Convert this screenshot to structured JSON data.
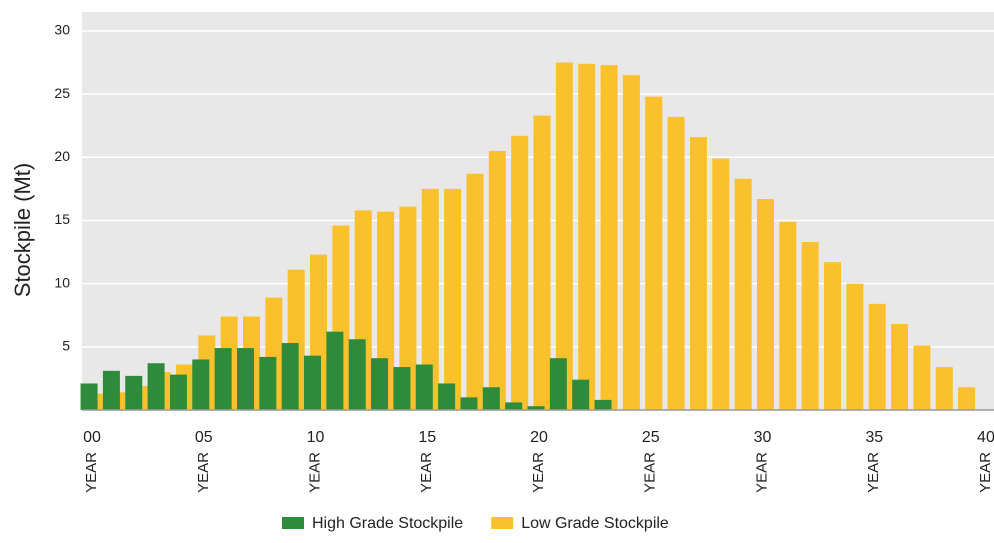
{
  "chart_data": {
    "type": "bar",
    "ylabel": "Stockpile (Mt)",
    "x_tick_unit": "YEAR",
    "x": [
      0,
      1,
      2,
      3,
      4,
      5,
      6,
      7,
      8,
      9,
      10,
      11,
      12,
      13,
      14,
      15,
      16,
      17,
      18,
      19,
      20,
      21,
      22,
      23,
      24,
      25,
      26,
      27,
      28,
      29,
      30,
      31,
      32,
      33,
      34,
      35,
      36,
      37,
      38,
      39
    ],
    "series": [
      {
        "name": "High Grade Stockpile",
        "color": "#2e8b3a",
        "values": [
          2.1,
          3.1,
          2.7,
          3.7,
          2.8,
          4.0,
          4.9,
          4.9,
          4.2,
          5.3,
          4.3,
          6.2,
          5.6,
          4.1,
          3.4,
          3.6,
          2.1,
          1.0,
          1.8,
          0.6,
          0.3,
          4.1,
          2.4,
          0.8,
          null,
          null,
          null,
          null,
          null,
          null,
          null,
          null,
          null,
          null,
          null,
          null,
          null,
          null,
          null,
          null
        ]
      },
      {
        "name": "Low Grade Stockpile",
        "color": "#fbc12d",
        "values": [
          1.3,
          1.4,
          1.9,
          3.0,
          3.6,
          5.9,
          7.4,
          7.4,
          8.9,
          11.1,
          12.3,
          14.6,
          15.8,
          15.7,
          16.1,
          17.5,
          17.5,
          18.7,
          20.5,
          21.7,
          23.3,
          27.5,
          27.4,
          27.3,
          26.5,
          24.8,
          23.2,
          21.6,
          19.9,
          18.3,
          16.7,
          14.9,
          13.3,
          11.7,
          10.0,
          8.4,
          6.8,
          5.1,
          3.4,
          1.8
        ]
      }
    ],
    "xlim": [
      -0.45,
      40.36
    ],
    "xticks": [
      {
        "value": 0,
        "label": "00"
      },
      {
        "value": 5,
        "label": "05"
      },
      10,
      15,
      20,
      25,
      30,
      35,
      40
    ],
    "ylim": [
      0,
      31.5
    ],
    "yticks": [
      5,
      10,
      15,
      20,
      25,
      30
    ],
    "grid": true,
    "legend": "bottom"
  }
}
